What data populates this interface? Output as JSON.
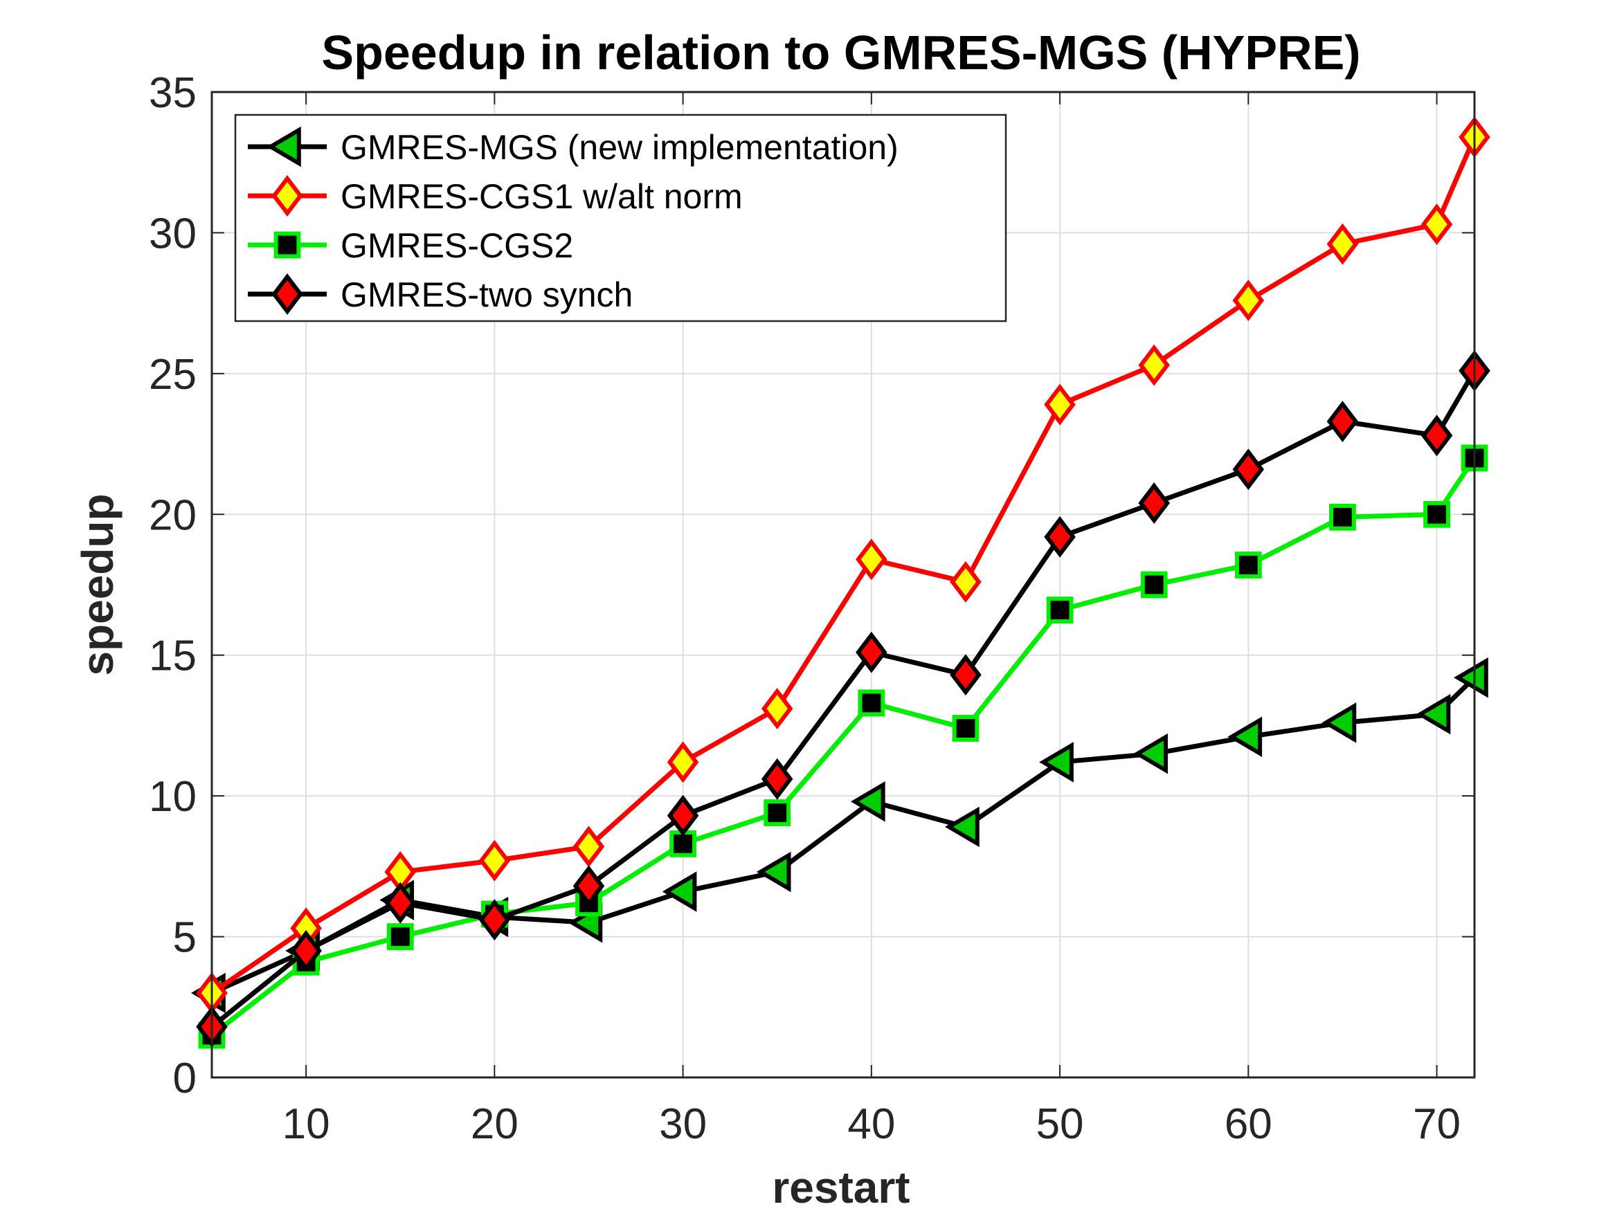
{
  "chart_data": {
    "type": "line",
    "title": "Speedup in relation to GMRES-MGS (HYPRE)",
    "xlabel": "restart",
    "ylabel": "speedup",
    "xlim": [
      5,
      72
    ],
    "ylim": [
      0,
      35
    ],
    "xticks": [
      10,
      20,
      30,
      40,
      50,
      60,
      70
    ],
    "yticks": [
      0,
      5,
      10,
      15,
      20,
      25,
      30,
      35
    ],
    "grid": true,
    "legend_position": "top-left",
    "x": [
      5,
      10,
      15,
      20,
      25,
      30,
      35,
      40,
      45,
      50,
      55,
      60,
      65,
      70,
      72
    ],
    "series": [
      {
        "name": "GMRES-MGS (new implementation)",
        "marker": "triangle-left",
        "line_color": "#000000",
        "marker_fill": "#00cc00",
        "marker_edge": "#000000",
        "values": [
          3.0,
          4.5,
          6.3,
          5.7,
          5.5,
          6.6,
          7.3,
          9.8,
          8.9,
          11.2,
          11.5,
          12.1,
          12.6,
          12.9,
          14.2
        ]
      },
      {
        "name": "GMRES-CGS1 w/alt norm",
        "marker": "diamond",
        "line_color": "#ff0000",
        "marker_fill": "#ffff00",
        "marker_edge": "#ff0000",
        "values": [
          3.0,
          5.3,
          7.3,
          7.7,
          8.2,
          11.2,
          13.1,
          18.4,
          17.6,
          23.9,
          25.3,
          27.6,
          29.6,
          30.3,
          33.4
        ]
      },
      {
        "name": "GMRES-CGS2",
        "marker": "square",
        "line_color": "#00ee00",
        "marker_fill": "#000000",
        "marker_edge": "#00ee00",
        "values": [
          1.5,
          4.1,
          5.0,
          5.8,
          6.2,
          8.3,
          9.4,
          13.3,
          12.4,
          16.6,
          17.5,
          18.2,
          19.9,
          20.0,
          22.0
        ]
      },
      {
        "name": "GMRES-two synch",
        "marker": "diamond",
        "line_color": "#000000",
        "marker_fill": "#ff0000",
        "marker_edge": "#000000",
        "values": [
          1.8,
          4.5,
          6.2,
          5.6,
          6.8,
          9.3,
          10.6,
          15.1,
          14.3,
          19.2,
          20.4,
          21.6,
          23.3,
          22.8,
          25.1
        ]
      }
    ]
  }
}
